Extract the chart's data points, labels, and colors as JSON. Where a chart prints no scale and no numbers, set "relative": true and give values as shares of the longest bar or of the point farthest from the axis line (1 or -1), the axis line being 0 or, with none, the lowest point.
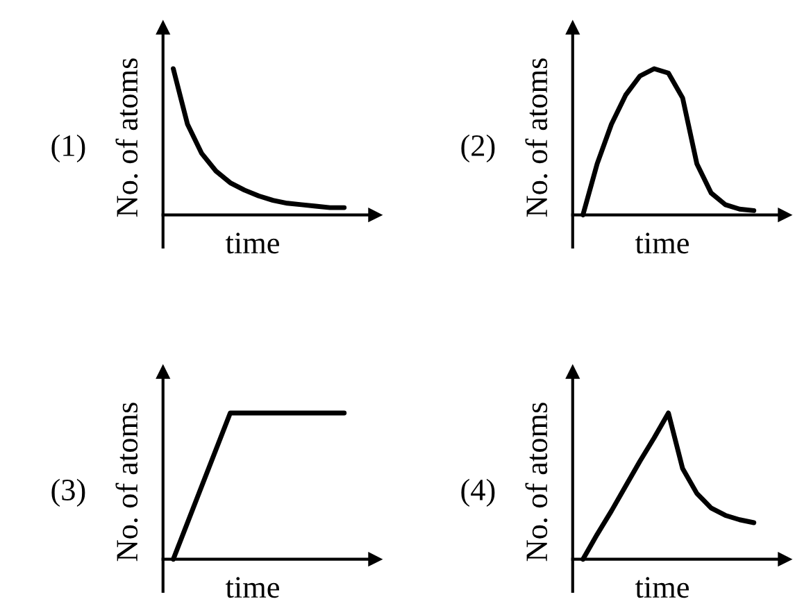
{
  "chart_data": [
    {
      "type": "line",
      "relative": true,
      "xlabel": "time",
      "ylabel": "No. of atoms",
      "annotations": [
        "(1)"
      ],
      "categories": [
        null,
        null,
        null,
        null,
        null,
        null,
        null,
        null,
        null,
        null,
        null,
        null,
        null
      ],
      "series": [
        {
          "color": "#000000",
          "values": [
            1,
            0.62,
            0.42,
            0.3,
            0.22,
            0.17,
            0.13,
            0.1,
            0.08,
            0.07,
            0.06,
            0.05,
            0.05
          ]
        }
      ],
      "marker": "none",
      "line_style": "solid"
    },
    {
      "type": "line",
      "relative": true,
      "xlabel": "time",
      "ylabel": "No. of atoms",
      "annotations": [
        "(2)"
      ],
      "categories": [
        null,
        null,
        null,
        null,
        null,
        null,
        null,
        null,
        null,
        null,
        null,
        null,
        null
      ],
      "series": [
        {
          "color": "#000000",
          "values": [
            0,
            0.35,
            0.62,
            0.82,
            0.95,
            1,
            0.97,
            0.8,
            0.35,
            0.15,
            0.07,
            0.04,
            0.03
          ]
        }
      ],
      "marker": "none",
      "line_style": "solid"
    },
    {
      "type": "line",
      "relative": true,
      "xlabel": "time",
      "ylabel": "No. of atoms",
      "annotations": [
        "(3)"
      ],
      "categories": [
        null,
        null,
        null,
        null,
        null,
        null,
        null
      ],
      "series": [
        {
          "color": "#000000",
          "values": [
            0,
            0.5,
            1,
            1,
            1,
            1,
            1
          ]
        }
      ],
      "marker": "none",
      "line_style": "solid"
    },
    {
      "type": "line",
      "relative": true,
      "xlabel": "time",
      "ylabel": "No. of atoms",
      "annotations": [
        "(4)"
      ],
      "categories": [
        null,
        null,
        null,
        null,
        null,
        null,
        null,
        null,
        null,
        null,
        null,
        null,
        null
      ],
      "series": [
        {
          "color": "#000000",
          "values": [
            0,
            0.17,
            0.33,
            0.5,
            0.67,
            0.83,
            1,
            0.62,
            0.45,
            0.35,
            0.3,
            0.27,
            0.25
          ]
        }
      ],
      "marker": "none",
      "line_style": "solid"
    }
  ]
}
